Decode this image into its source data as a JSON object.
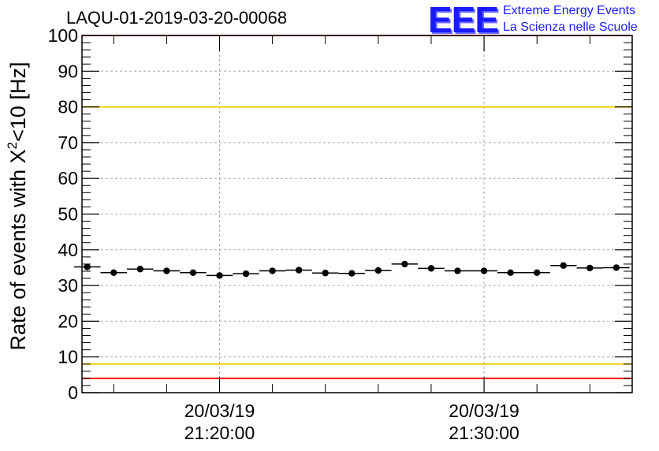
{
  "header": {
    "title": "LAQU-01-2019-03-20-00068",
    "logo_mark": "EEE",
    "logo_line1": "Extreme Energy Events",
    "logo_line2": "La Scienza nelle Scuole"
  },
  "colors": {
    "logo": "#1a1aff",
    "red_limit": "#ff0000",
    "yellow_limit": "#f5d000",
    "grid": "#aaaaaa",
    "axis": "#000000"
  },
  "chart_data": {
    "type": "scatter",
    "title": "LAQU-01-2019-03-20-00068",
    "ylabel_main": "Rate of events with X",
    "ylabel_sup": "2",
    "ylabel_tail": "<10 [Hz]",
    "ylim": [
      0,
      100
    ],
    "yticks": [
      0,
      10,
      20,
      30,
      40,
      50,
      60,
      70,
      80,
      90,
      100
    ],
    "xlim_minutes": [
      -5.2,
      15.6
    ],
    "xticks": [
      {
        "minute": 0,
        "date": "20/03/19",
        "time": "21:20:00"
      },
      {
        "minute": 10,
        "date": "20/03/19",
        "time": "21:30:00"
      }
    ],
    "bin_width_minutes": 1,
    "grid": true,
    "hlines": [
      {
        "name": "upper-red-limit",
        "value": 100,
        "color": "#ff0000"
      },
      {
        "name": "upper-yellow-limit",
        "value": 80,
        "color": "#f5d000"
      },
      {
        "name": "lower-yellow-limit",
        "value": 8,
        "color": "#f5d000"
      },
      {
        "name": "lower-red-limit",
        "value": 4,
        "color": "#ff0000"
      }
    ],
    "series": [
      {
        "name": "rate",
        "x_minutes": [
          -5,
          -4,
          -3,
          -2,
          -1,
          0,
          1,
          2,
          3,
          4,
          5,
          6,
          7,
          8,
          9,
          10,
          11,
          12,
          13,
          14,
          15
        ],
        "values": [
          35.2,
          33.6,
          34.6,
          34.1,
          33.6,
          32.8,
          33.3,
          34.1,
          34.3,
          33.5,
          33.4,
          34.2,
          36.0,
          34.8,
          34.1,
          34.1,
          33.6,
          33.6,
          35.6,
          34.9,
          35.0
        ]
      }
    ]
  }
}
